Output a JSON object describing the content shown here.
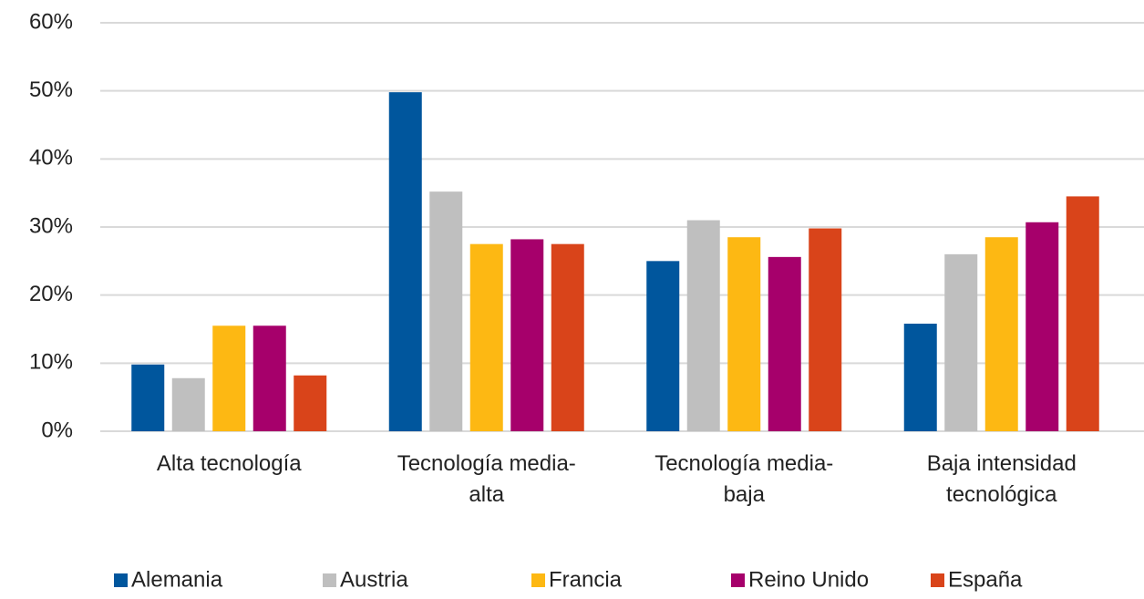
{
  "chart_data": {
    "type": "bar",
    "categories": [
      "Alta tecnología",
      "Tecnología media-alta",
      "Tecnología media-baja",
      "Baja intensidad tecnológica"
    ],
    "series": [
      {
        "name": "Alemania",
        "color": "#00569d",
        "values": [
          9.8,
          49.8,
          25,
          15.8
        ]
      },
      {
        "name": "Austria",
        "color": "#bfbfbf",
        "values": [
          7.8,
          35.2,
          31,
          26
        ]
      },
      {
        "name": "Francia",
        "color": "#fdb813",
        "values": [
          15.5,
          27.5,
          28.5,
          28.5
        ]
      },
      {
        "name": "Reino Unido",
        "color": "#a6006b",
        "values": [
          15.5,
          28.2,
          25.6,
          30.7
        ]
      },
      {
        "name": "España",
        "color": "#d9441a",
        "values": [
          8.2,
          27.5,
          29.8,
          34.5
        ]
      }
    ],
    "ylim": [
      0,
      60
    ],
    "yticks": [
      {
        "value": 0,
        "label": "0%"
      },
      {
        "value": 10,
        "label": "10%"
      },
      {
        "value": 20,
        "label": "20%"
      },
      {
        "value": 30,
        "label": "30%"
      },
      {
        "value": 40,
        "label": "40%"
      },
      {
        "value": 50,
        "label": "50%"
      },
      {
        "value": 60,
        "label": "60%"
      }
    ],
    "grid": true,
    "legend": "bottom"
  }
}
